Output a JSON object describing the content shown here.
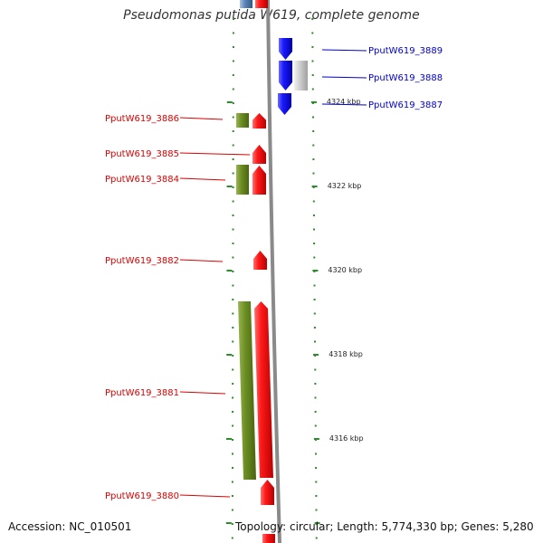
{
  "title": "Pseudomonas putida W619, complete genome",
  "footer": {
    "accession": "Accession: NC_010501",
    "summary": "Topology: circular; Length: 5,774,330 bp; Genes: 5,280"
  },
  "colors": {
    "forward_gene": "#ee0000",
    "reverse_gene": "#0000ee",
    "cds_feature": "#6b8e23",
    "pseudo_gene": "#c8c8c8",
    "forward_label": "#dd0000",
    "reverse_label": "#0000cc",
    "tick": "#2e8b2e",
    "backbone": "#8a8a8a"
  },
  "kbp_labels": [
    {
      "text": "4324 kbp",
      "kbp": 4324
    },
    {
      "text": "4322 kbp",
      "kbp": 4322
    },
    {
      "text": "4320 kbp",
      "kbp": 4320
    },
    {
      "text": "4318 kbp",
      "kbp": 4318
    },
    {
      "text": "4316 kbp",
      "kbp": 4316
    }
  ],
  "reverse_genes": [
    {
      "label": "PputW619_3889"
    },
    {
      "label": "PputW619_3888",
      "pseudo": true
    },
    {
      "label": "PputW619_3887"
    }
  ],
  "forward_genes": [
    {
      "label": "PputW619_3886"
    },
    {
      "label": "PputW619_3885"
    },
    {
      "label": "PputW619_3884"
    },
    {
      "label": "PputW619_3882"
    },
    {
      "label": "PputW619_3881"
    },
    {
      "label": "PputW619_3880"
    }
  ]
}
